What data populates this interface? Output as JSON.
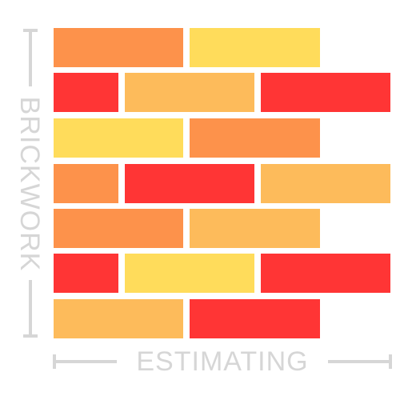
{
  "logo": {
    "vertical_word": "BRICKWORK",
    "horizontal_word": "ESTIMATING",
    "colors": {
      "orange": "#fd924b",
      "yellow": "#ffdc5b",
      "red": "#ff3535",
      "light_orange": "#fdbb5b",
      "guide_gray": "#d6d6d6"
    },
    "rows": [
      [
        "orange",
        "yellow"
      ],
      [
        "red",
        "light_orange",
        "red"
      ],
      [
        "yellow",
        "orange"
      ],
      [
        "orange",
        "red",
        "light_orange"
      ],
      [
        "orange",
        "light_orange"
      ],
      [
        "red",
        "yellow",
        "red"
      ],
      [
        "light_orange",
        "red"
      ]
    ]
  }
}
